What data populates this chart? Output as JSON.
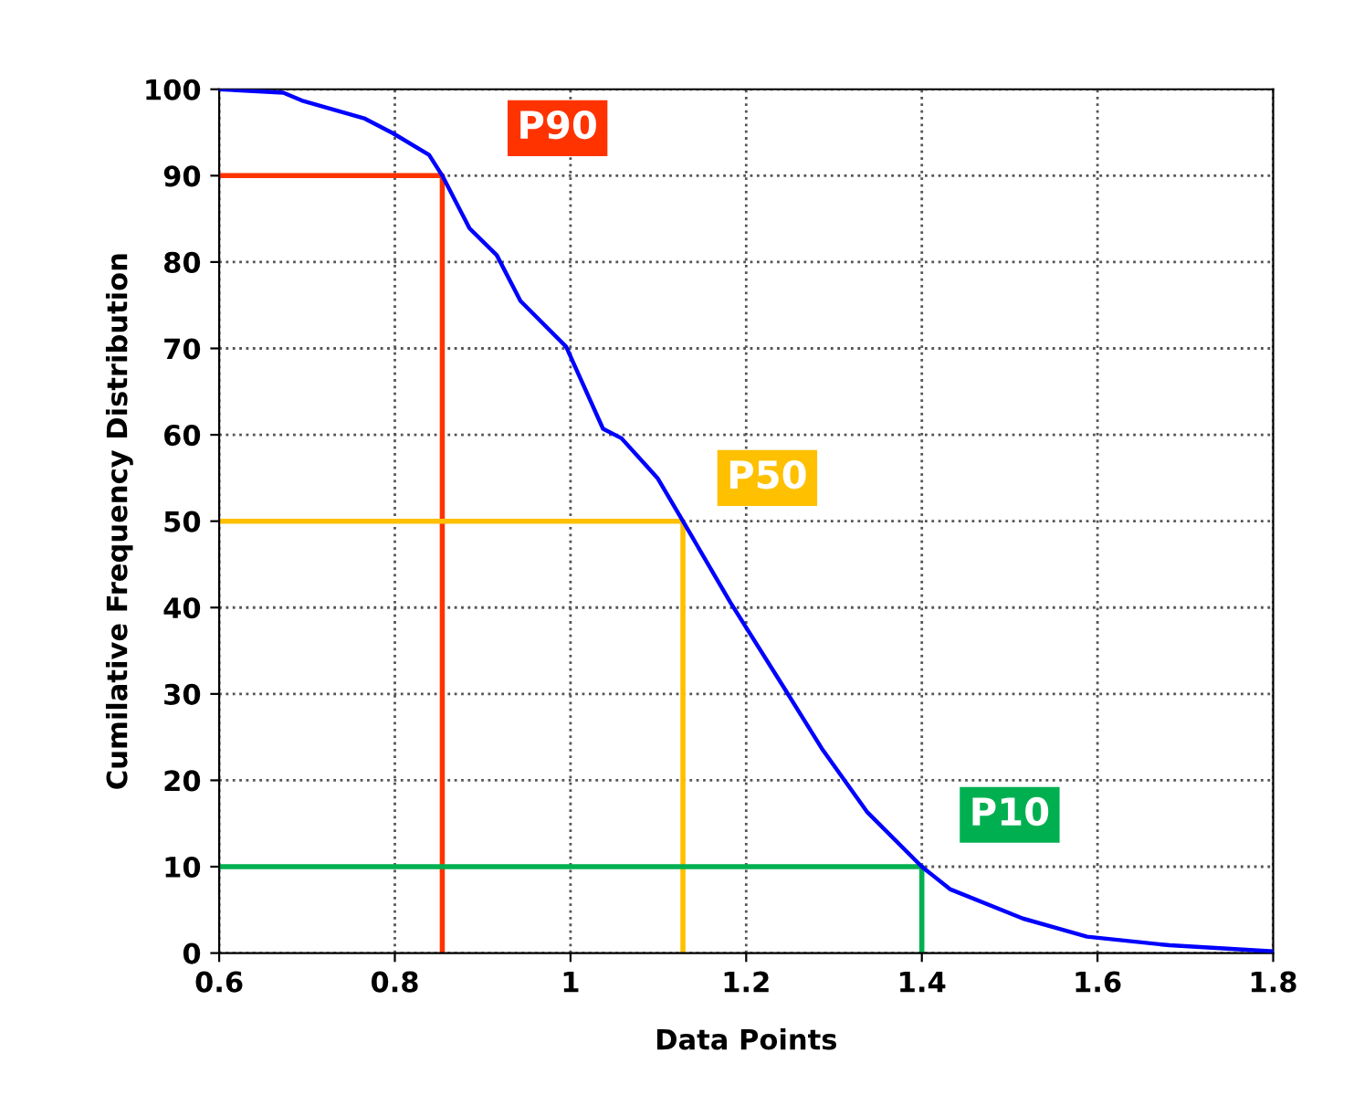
{
  "chart_data": {
    "type": "line",
    "xlabel": "Data Points",
    "ylabel": "Cumilative Frequency Distribution",
    "series": [
      {
        "color": "#0000ff",
        "x": [
          0.6,
          0.673,
          0.694,
          0.766,
          0.798,
          0.839,
          0.854,
          0.885,
          0.916,
          0.943,
          0.995,
          1.037,
          1.058,
          1.099,
          1.128,
          1.182,
          1.245,
          1.286,
          1.338,
          1.4,
          1.432,
          1.515,
          1.588,
          1.682,
          1.8
        ],
        "values": [
          100,
          99.6,
          98.7,
          96.6,
          94.9,
          92.4,
          90,
          83.9,
          80.8,
          75.5,
          70.2,
          60.7,
          59.6,
          55,
          50,
          40.6,
          30.4,
          23.7,
          16.3,
          10,
          7.4,
          4.0,
          1.9,
          0.9,
          0.2
        ]
      },
      {
        "color": "#ff3300",
        "x": [
          0.6,
          0.854,
          0.854
        ],
        "values": [
          90,
          90,
          0
        ]
      },
      {
        "color": "#ffc000",
        "x": [
          0.6,
          1.128,
          1.128
        ],
        "values": [
          50,
          50,
          0
        ]
      },
      {
        "color": "#00b050",
        "x": [
          0.6,
          1.4,
          1.4
        ],
        "values": [
          10,
          10,
          0
        ]
      }
    ],
    "annotations": [
      "P90",
      "P50",
      "P10"
    ],
    "xlim": [
      0.6,
      1.8
    ],
    "xticks": [
      0.6,
      0.8,
      1,
      1.2,
      1.4,
      1.6,
      1.8
    ],
    "ylim": [
      0,
      100
    ],
    "yticks": [
      0,
      10,
      20,
      30,
      40,
      50,
      60,
      70,
      80,
      90,
      100
    ],
    "grid": true,
    "marker": "none",
    "line_style": "solid",
    "legend": false
  }
}
